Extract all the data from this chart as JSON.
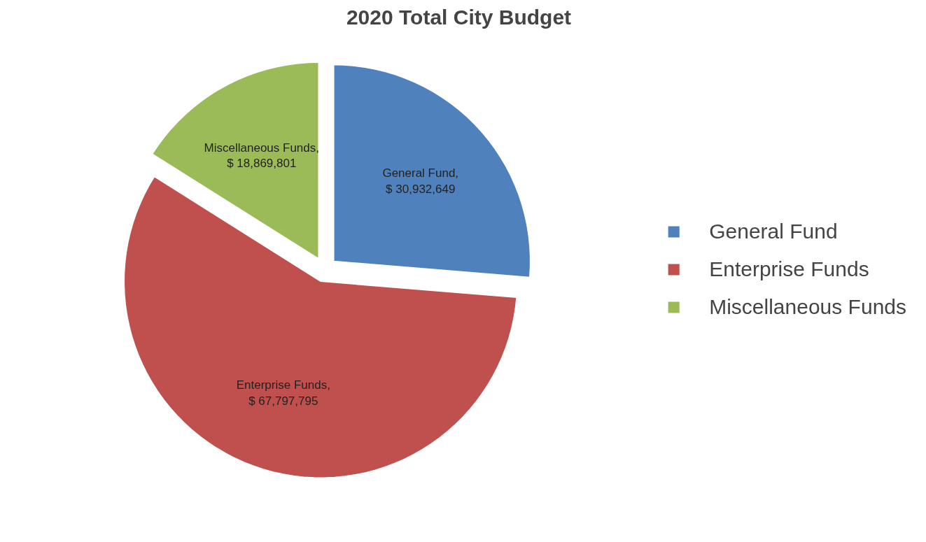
{
  "chart_data": {
    "type": "pie",
    "title": "2020 Total City Budget",
    "categories": [
      "General Fund",
      "Enterprise Funds",
      "Miscellaneous Funds"
    ],
    "values": [
      30932649,
      67797795,
      18869801
    ],
    "colors": [
      "#4f81bd",
      "#c0504d",
      "#9bbb59"
    ],
    "value_labels": [
      "General Fund, $ 30,932,649",
      "Enterprise Funds, $ 67,797,795",
      "Miscellaneous Funds, $ 18,869,801"
    ],
    "legend": "right"
  }
}
